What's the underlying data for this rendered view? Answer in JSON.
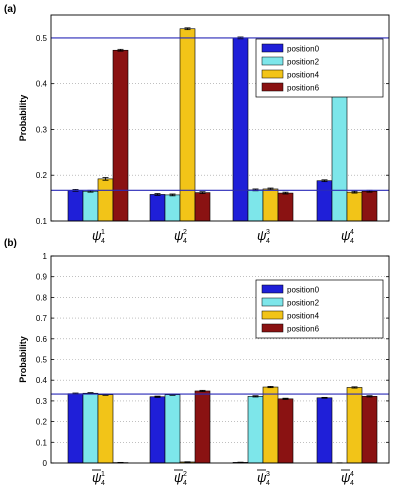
{
  "chart_data": [
    {
      "type": "bar",
      "panel_label": "(a)",
      "categories": [
        "ψ41",
        "ψ42",
        "ψ43",
        "ψ44"
      ],
      "category_labels": [
        {
          "base": "ψ",
          "sub": "4",
          "sup": "1",
          "bar": false
        },
        {
          "base": "ψ",
          "sub": "4",
          "sup": "2",
          "bar": false
        },
        {
          "base": "ψ",
          "sub": "4",
          "sup": "3",
          "bar": false
        },
        {
          "base": "ψ",
          "sub": "4",
          "sup": "4",
          "bar": false
        }
      ],
      "series": [
        {
          "name": "position0",
          "color": "#1f1fd8",
          "values": [
            0.167,
            0.158,
            0.5,
            0.188
          ],
          "errors": [
            0.002,
            0.002,
            0.002,
            0.002
          ]
        },
        {
          "name": "position2",
          "color": "#7de6ea",
          "values": [
            0.165,
            0.157,
            0.168,
            0.483
          ],
          "errors": [
            0.002,
            0.002,
            0.002,
            0.002
          ]
        },
        {
          "name": "position4",
          "color": "#f2c418",
          "values": [
            0.192,
            0.52,
            0.17,
            0.163
          ],
          "errors": [
            0.003,
            0.002,
            0.002,
            0.002
          ]
        },
        {
          "name": "position6",
          "color": "#8a1212",
          "values": [
            0.473,
            0.162,
            0.161,
            0.165
          ],
          "errors": [
            0.002,
            0.002,
            0.002,
            0.002
          ]
        }
      ],
      "reference_lines": [
        0.5,
        0.167
      ],
      "ylabel": "Probability",
      "ylim": [
        0.1,
        0.55
      ],
      "yticks": [
        "0.1",
        "0.2",
        "0.3",
        "0.4",
        "0.5"
      ],
      "grid": "horizontal dotted",
      "legend": "top-right",
      "colors": {
        "reference_line": "#2a2ab8",
        "axis": "#000000",
        "grid": "#9a9a9a"
      }
    },
    {
      "type": "bar",
      "panel_label": "(b)",
      "categories": [
        "ψ̄41",
        "ψ̄42",
        "ψ̄43",
        "ψ̄44"
      ],
      "category_labels": [
        {
          "base": "ψ",
          "sub": "4",
          "sup": "1",
          "bar": true
        },
        {
          "base": "ψ",
          "sub": "4",
          "sup": "2",
          "bar": true
        },
        {
          "base": "ψ",
          "sub": "4",
          "sup": "3",
          "bar": true
        },
        {
          "base": "ψ",
          "sub": "4",
          "sup": "4",
          "bar": true
        }
      ],
      "series": [
        {
          "name": "position0",
          "color": "#1f1fd8",
          "values": [
            0.335,
            0.32,
            0.003,
            0.315
          ],
          "errors": [
            0.003,
            0.003,
            0.001,
            0.002
          ]
        },
        {
          "name": "position2",
          "color": "#7de6ea",
          "values": [
            0.337,
            0.33,
            0.322,
            0.0
          ],
          "errors": [
            0.003,
            0.003,
            0.003,
            0.001
          ]
        },
        {
          "name": "position4",
          "color": "#f2c418",
          "values": [
            0.33,
            0.005,
            0.367,
            0.365
          ],
          "errors": [
            0.003,
            0.001,
            0.003,
            0.003
          ]
        },
        {
          "name": "position6",
          "color": "#8a1212",
          "values": [
            0.002,
            0.348,
            0.31,
            0.322
          ],
          "errors": [
            0.001,
            0.003,
            0.003,
            0.003
          ]
        }
      ],
      "reference_lines": [
        0.333
      ],
      "ylabel": "Probability",
      "ylim": [
        0,
        1
      ],
      "yticks": [
        "0",
        "0.1",
        "0.2",
        "0.3",
        "0.4",
        "0.5",
        "0.6",
        "0.7",
        "0.8",
        "0.9",
        "1"
      ],
      "grid": "horizontal dotted",
      "legend": "top-right",
      "colors": {
        "reference_line": "#2a2ab8",
        "axis": "#000000",
        "grid": "#9a9a9a"
      }
    }
  ]
}
